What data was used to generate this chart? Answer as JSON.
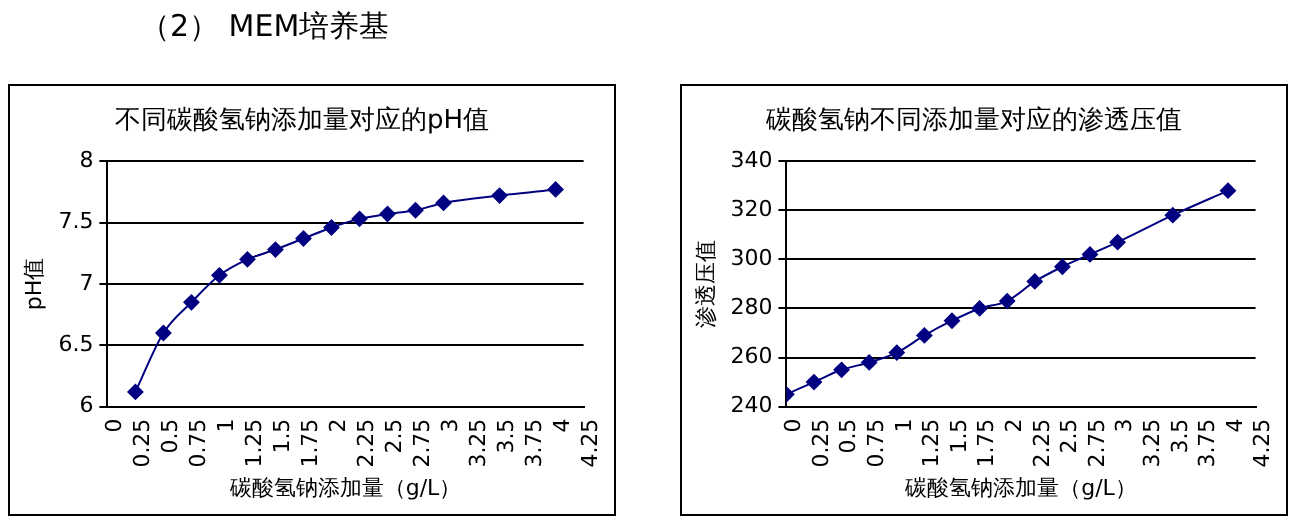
{
  "chart_data": [
    {
      "type": "line",
      "title": "不同碳酸氢钠添加量对应的pH值",
      "xlabel": "碳酸氢钠添加量（g/L）",
      "ylabel": "pH值",
      "annotations": [
        "（2） MEM培养基"
      ],
      "x": [
        0.25,
        0.5,
        0.75,
        1,
        1.25,
        1.5,
        1.75,
        2,
        2.25,
        2.5,
        2.75,
        3,
        3.5,
        4
      ],
      "series": [
        {
          "color": "#000080",
          "values": [
            6.12,
            6.6,
            6.85,
            7.07,
            7.2,
            7.28,
            7.37,
            7.46,
            7.53,
            7.57,
            7.6,
            7.66,
            7.72,
            7.77
          ]
        }
      ],
      "xlim": [
        0,
        4.25
      ],
      "xticks": [
        0,
        0.25,
        0.5,
        0.75,
        1,
        1.25,
        1.5,
        1.75,
        2,
        2.25,
        2.5,
        2.75,
        3,
        3.25,
        3.5,
        3.75,
        4,
        4.25
      ],
      "ylim": [
        6,
        8
      ],
      "yticks": [
        6,
        6.5,
        7,
        7.5,
        8
      ],
      "grid": "y",
      "legend": false,
      "marker": "diamond",
      "line_style": "solid"
    },
    {
      "type": "line",
      "title": "碳酸氢钠不同添加量对应的渗透压值",
      "xlabel": "碳酸氢钠添加量（g/L）",
      "ylabel": "渗透压值",
      "x": [
        0,
        0.25,
        0.5,
        0.75,
        1,
        1.25,
        1.5,
        1.75,
        2,
        2.25,
        2.5,
        2.75,
        3,
        3.5,
        4
      ],
      "series": [
        {
          "color": "#000080",
          "values": [
            245,
            250,
            255,
            258,
            262,
            269,
            275,
            280,
            283,
            291,
            297,
            302,
            307,
            318,
            328
          ]
        }
      ],
      "xlim": [
        0,
        4.25
      ],
      "xticks": [
        0,
        0.25,
        0.5,
        0.75,
        1,
        1.25,
        1.5,
        1.75,
        2,
        2.25,
        2.5,
        2.75,
        3,
        3.25,
        3.5,
        3.75,
        4,
        4.25
      ],
      "ylim": [
        240,
        340
      ],
      "yticks": [
        240,
        260,
        280,
        300,
        320,
        340
      ],
      "grid": "y",
      "legend": false,
      "marker": "diamond",
      "line_style": "solid"
    }
  ]
}
